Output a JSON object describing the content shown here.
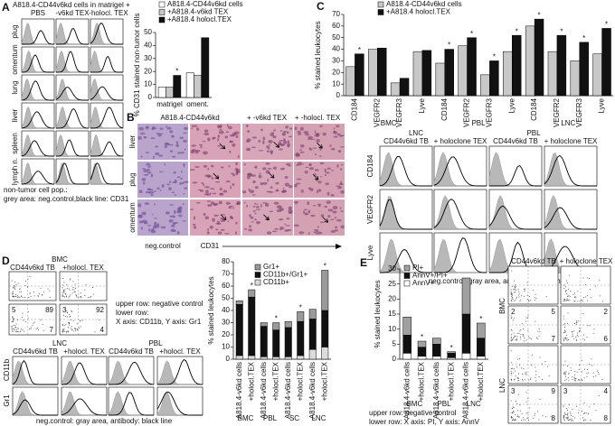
{
  "panel_A": {
    "letter": "A",
    "header": "A818.4-CD44v6kd cells in matrigel +",
    "columns": [
      "PBS",
      "-v6kd TEX",
      "-holocl. TEX"
    ],
    "rows": [
      "plug",
      "omentum",
      "lung",
      "liver",
      "spleen",
      "lymph n."
    ],
    "caption_1": "non-tumor cell pop.:",
    "caption_2": "grey area: neg.control,black line: CD31"
  },
  "panel_B": {
    "letter": "B",
    "columns": [
      "A818.4-CD44v6kd",
      "+ -v6kd TEX",
      "+ -holocl. TEX"
    ],
    "rows": [
      "liver",
      "plug",
      "omentum"
    ],
    "footer_left": "neg.control",
    "footer_right": "CD31"
  },
  "panel_C": {
    "letter": "C",
    "groups": [
      "LNC",
      "PBL"
    ],
    "columns": [
      "CD44v6kd TB",
      "+ holoclone TEX",
      "CD44v6kd TB",
      "+ holoclone TEX"
    ],
    "rows": [
      "CD184",
      "VEGFR2",
      "Lyve"
    ],
    "caption": "neg.control: gray area, antibody: black line"
  },
  "panel_D": {
    "letter": "D",
    "bmc_title": "BMC",
    "bmc_columns": [
      "CD44v6kd TB",
      "+holocl. TEX"
    ],
    "bmc_plots": [
      {
        "ul": 5,
        "ur": 89,
        "lr": 7
      },
      {
        "ul": 3,
        "ur": 92,
        "lr": 4
      }
    ],
    "notes": [
      "upper row: negative control",
      "lower row:",
      "X axis: CD11b, Y axis: Gr1"
    ],
    "groups": [
      "LNC",
      "PBL"
    ],
    "columns": [
      "CD44v6kd TB",
      "+holocl. TEX",
      "CD44v6kd TB",
      "+holocl. TEX"
    ],
    "rows": [
      "CD11b",
      "Gr1"
    ],
    "caption": "neg.control: gray area, antibody: black line"
  },
  "panel_E": {
    "letter": "E",
    "columns": [
      "CD44v6kd TB",
      "+ holoclone TEX"
    ],
    "rows": [
      {
        "label": "BMC",
        "plots": [
          {
            "ul": 2,
            "ur": 5,
            "lr": 7
          },
          {
            "ur": 2,
            "lr": 6
          }
        ]
      },
      {
        "label": "LNC",
        "plots": [
          {
            "ul": 3,
            "ur": 9,
            "lr": 8
          },
          {
            "ul": 3,
            "ur": 4,
            "lr": 8
          }
        ]
      }
    ],
    "notes": [
      "upper row: negative control",
      "lower row: X axis: PI, Y axis: AnnV"
    ]
  },
  "chart_data": [
    {
      "type": "bar",
      "y_label": "% CD31 stained non-tumor cells",
      "categories": [
        "matrigel",
        "oment."
      ],
      "series": [
        {
          "name": "A818.4-CD44v6kd cells",
          "color": "#ffffff",
          "values": [
            8,
            19
          ]
        },
        {
          "name": "+A818.4-v6kd TEX",
          "color": "#c8c8c8",
          "values": [
            8,
            17
          ]
        },
        {
          "name": "+A818.4 holocl.TEX",
          "color": "#111111",
          "values": [
            17,
            46
          ]
        }
      ],
      "ylim": [
        0,
        50
      ],
      "yticks": [
        0,
        10,
        20,
        30,
        40,
        50
      ],
      "annotations": [
        {
          "text": "*",
          "series": 2,
          "index": 0
        }
      ]
    },
    {
      "type": "bar",
      "y_label": "% stained leukocytes",
      "categories": [
        "CD184",
        "VEGFR2",
        "VEGFR3",
        "Lyve",
        "CD184",
        "VEGFR2",
        "VEGFR3",
        "Lyve",
        "CD184",
        "VEGFR2",
        "VEGFR3",
        "Lyve"
      ],
      "groups": [
        "BMC",
        "PBL",
        "LNC"
      ],
      "series": [
        {
          "name": "A818.4-CD44v6kd cells",
          "color": "#c8c8c8",
          "values": [
            25,
            40,
            11,
            38,
            28,
            43,
            18,
            38,
            60,
            38,
            30,
            36
          ]
        },
        {
          "name": "+A818.4 holocl.TEX",
          "color": "#111111",
          "values": [
            36,
            41,
            15,
            39,
            40,
            50,
            30,
            52,
            66,
            52,
            46,
            58
          ]
        }
      ],
      "ylim": [
        0,
        70
      ],
      "yticks": [
        0,
        10,
        20,
        30,
        40,
        50,
        60,
        70
      ],
      "annotations": [
        {
          "text": "*",
          "series": 1,
          "index": 0
        },
        {
          "text": "*",
          "series": 1,
          "index": 4
        },
        {
          "text": "*",
          "series": 1,
          "index": 5
        },
        {
          "text": "*",
          "series": 1,
          "index": 6
        },
        {
          "text": "*",
          "series": 1,
          "index": 7
        },
        {
          "text": "*",
          "series": 1,
          "index": 8
        },
        {
          "text": "*",
          "series": 1,
          "index": 9
        },
        {
          "text": "*",
          "series": 1,
          "index": 10
        },
        {
          "text": "*",
          "series": 1,
          "index": 11
        }
      ]
    },
    {
      "type": "stacked_bar",
      "y_label": "% stained leukocytes",
      "categories": [
        "A818.4-v6kd cells",
        "+holocl.TEX",
        "A818.4-v6kd cells",
        "+holocl.TEX",
        "A818.4-v6kd cells",
        "+holocl.TEX",
        "A818.4-v6kd cells",
        "+holocl.TEX"
      ],
      "groups": [
        "BMC",
        "PBL",
        "SC",
        "LNC"
      ],
      "series": [
        {
          "name": "CD11b+",
          "color": "#dcdcdc",
          "values": [
            3,
            3,
            2,
            2,
            2,
            3,
            8,
            10
          ]
        },
        {
          "name": "CD11b+/Gr1+",
          "color": "#111111",
          "values": [
            42,
            48,
            25,
            22,
            24,
            28,
            25,
            30
          ]
        },
        {
          "name": "Gr1+",
          "color": "#9a9a9a",
          "values": [
            3,
            6,
            3,
            6,
            5,
            8,
            8,
            33
          ]
        }
      ],
      "ylim": [
        0,
        80
      ],
      "yticks": [
        0,
        10,
        20,
        30,
        40,
        50,
        60,
        70,
        80
      ],
      "annotations": [
        {
          "text": "*",
          "series": 2,
          "index": 1
        },
        {
          "text": "*",
          "series": 2,
          "index": 3
        },
        {
          "text": "*",
          "series": 2,
          "index": 5
        },
        {
          "text": "*",
          "series": 2,
          "index": 7
        }
      ]
    },
    {
      "type": "stacked_bar",
      "y_label": "% stained leukocytes",
      "categories": [
        "A818.4-v6kd cells",
        "+holocl.TEX",
        "A818.4-v6kd cells",
        "+holocl.TEX",
        "A818.4-v6kd cells",
        "+holocl.TEX"
      ],
      "groups": [
        "BMC",
        "PBL",
        "LNC"
      ],
      "series": [
        {
          "name": "AnnV+",
          "color": "#ffffff",
          "values": [
            2,
            1,
            1,
            0.5,
            2,
            1
          ]
        },
        {
          "name": "AnnV+/PI+",
          "color": "#111111",
          "values": [
            6,
            3,
            4,
            1.5,
            13,
            6
          ]
        },
        {
          "name": "PI+",
          "color": "#a0a0a0",
          "values": [
            6,
            2,
            2,
            0.5,
            12,
            5
          ]
        }
      ],
      "ylim": [
        0,
        30
      ],
      "yticks": [
        0,
        5,
        10,
        15,
        20,
        25,
        30
      ],
      "annotations": [
        {
          "text": "*",
          "series": 2,
          "index": 1
        },
        {
          "text": "*",
          "series": 2,
          "index": 3
        },
        {
          "text": "*",
          "series": 2,
          "index": 5
        }
      ]
    }
  ]
}
